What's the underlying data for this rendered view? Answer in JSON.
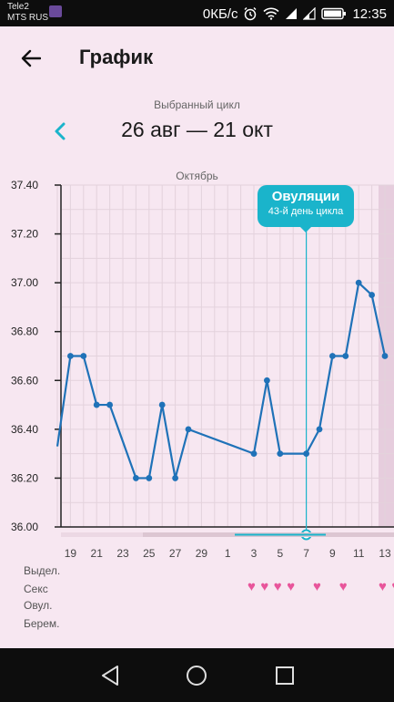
{
  "status_bar": {
    "carrier_line1": "Tele2",
    "carrier_line2": "MTS RUS",
    "speed": "0КБ/с",
    "time": "12:35"
  },
  "header": {
    "title": "График"
  },
  "cycle": {
    "label": "Выбранный цикл",
    "range": "26 авг — 21 окт"
  },
  "month_label": "Октябрь",
  "ovulation": {
    "title": "Овуляции",
    "subtitle": "43-й день цикла"
  },
  "row_labels": {
    "bleeding": "Выдел.",
    "sex": "Секс",
    "ovulation": "Овул.",
    "pregnancy": "Берем."
  },
  "sex_days": [
    "3",
    "4",
    "5",
    "6",
    "8",
    "10",
    "13",
    "14"
  ],
  "colors": {
    "line": "#1f72b8",
    "accent": "#1ab4cb",
    "heart": "#e8559b",
    "background": "#f7e7f1"
  },
  "chart_data": {
    "type": "line",
    "x_tick_labels": [
      "19",
      "21",
      "23",
      "25",
      "27",
      "29",
      "1",
      "3",
      "5",
      "7",
      "9",
      "11",
      "13"
    ],
    "y_tick_labels": [
      "37.40",
      "37.20",
      "37.00",
      "36.80",
      "36.60",
      "36.40",
      "36.20",
      "36.00"
    ],
    "ylim": [
      36.0,
      37.4
    ],
    "series": [
      {
        "x": [
          "18",
          "19",
          "20",
          "21",
          "22",
          "24",
          "25",
          "26",
          "27",
          "28",
          "3",
          "4",
          "5",
          "7",
          "8",
          "9",
          "10",
          "11",
          "12",
          "13"
        ],
        "values": [
          36.33,
          36.7,
          36.7,
          36.5,
          36.5,
          36.2,
          36.2,
          36.5,
          36.2,
          36.4,
          36.3,
          36.6,
          36.3,
          36.3,
          36.4,
          36.7,
          36.7,
          37.0,
          36.95,
          36.7
        ]
      }
    ]
  }
}
